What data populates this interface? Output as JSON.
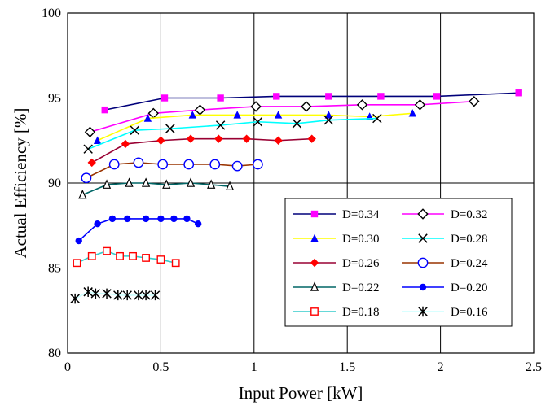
{
  "chart_data": {
    "type": "line",
    "title": "",
    "xlabel": "Input Power [kW]",
    "ylabel": "Actual Efficiency [%]",
    "xlim": [
      0,
      2.5
    ],
    "ylim": [
      80,
      100
    ],
    "xticks": [
      0,
      0.5,
      1,
      1.5,
      2,
      2.5
    ],
    "xtick_labels": [
      "0",
      "0.5",
      "1",
      "1.5",
      "2",
      "2.5"
    ],
    "yticks": [
      80,
      85,
      90,
      95,
      100
    ],
    "ytick_labels": [
      "80",
      "85",
      "90",
      "95",
      "100"
    ],
    "grid": true,
    "legend_position": "bottom-right, two columns",
    "series": [
      {
        "name": "D=0.34",
        "color": "#00007a",
        "marker": "square-filled",
        "marker_color": "#ff00ff",
        "x": [
          0.2,
          0.52,
          0.82,
          1.12,
          1.4,
          1.68,
          1.98,
          2.42
        ],
        "y": [
          94.3,
          95.0,
          95.0,
          95.1,
          95.1,
          95.1,
          95.1,
          95.3
        ]
      },
      {
        "name": "D=0.32",
        "color": "#ff00ff",
        "marker": "diamond-open",
        "marker_color": "#000000",
        "x": [
          0.12,
          0.46,
          0.71,
          1.01,
          1.28,
          1.58,
          1.89,
          2.18
        ],
        "y": [
          93.0,
          94.1,
          94.3,
          94.5,
          94.5,
          94.6,
          94.6,
          94.8
        ]
      },
      {
        "name": "D=0.30",
        "color": "#ffff00",
        "marker": "triangle-filled",
        "marker_color": "#0000ff",
        "x": [
          0.16,
          0.43,
          0.67,
          0.91,
          1.13,
          1.4,
          1.62,
          1.85
        ],
        "y": [
          92.5,
          93.8,
          94.0,
          94.0,
          94.0,
          94.0,
          93.9,
          94.1
        ]
      },
      {
        "name": "D=0.28",
        "color": "#00ffff",
        "marker": "x-cross",
        "marker_color": "#000000",
        "x": [
          0.11,
          0.36,
          0.55,
          0.82,
          1.02,
          1.23,
          1.4,
          1.66
        ],
        "y": [
          92.0,
          93.1,
          93.2,
          93.4,
          93.6,
          93.5,
          93.7,
          93.8
        ]
      },
      {
        "name": "D=0.26",
        "color": "#990033",
        "marker": "diamond-filled",
        "marker_color": "#ff0000",
        "x": [
          0.13,
          0.31,
          0.5,
          0.66,
          0.81,
          0.96,
          1.13,
          1.31
        ],
        "y": [
          91.2,
          92.3,
          92.5,
          92.6,
          92.6,
          92.6,
          92.5,
          92.6
        ]
      },
      {
        "name": "D=0.24",
        "color": "#993300",
        "marker": "circle-open",
        "marker_color": "#0000ff",
        "x": [
          0.1,
          0.25,
          0.38,
          0.51,
          0.65,
          0.79,
          0.91,
          1.02
        ],
        "y": [
          90.3,
          91.1,
          91.2,
          91.1,
          91.1,
          91.1,
          91.0,
          91.1
        ]
      },
      {
        "name": "D=0.22",
        "color": "#006666",
        "marker": "triangle-open",
        "marker_color": "#000000",
        "x": [
          0.08,
          0.21,
          0.33,
          0.42,
          0.53,
          0.66,
          0.77,
          0.87
        ],
        "y": [
          89.3,
          89.9,
          90.0,
          90.0,
          89.9,
          90.0,
          89.9,
          89.8
        ]
      },
      {
        "name": "D=0.20",
        "color": "#0000ff",
        "marker": "circle-filled",
        "marker_color": "#0000ff",
        "x": [
          0.06,
          0.16,
          0.24,
          0.32,
          0.42,
          0.5,
          0.57,
          0.64,
          0.7
        ],
        "y": [
          86.6,
          87.6,
          87.9,
          87.9,
          87.9,
          87.9,
          87.9,
          87.9,
          87.6
        ]
      },
      {
        "name": "D=0.18",
        "color": "#33cccc",
        "marker": "square-open",
        "marker_color": "#ff0000",
        "x": [
          0.05,
          0.13,
          0.21,
          0.28,
          0.35,
          0.42,
          0.5,
          0.58
        ],
        "y": [
          85.3,
          85.7,
          86.0,
          85.7,
          85.7,
          85.6,
          85.5,
          85.3
        ]
      },
      {
        "name": "D=0.16",
        "color": "#ccffff",
        "marker": "asterisk",
        "marker_color": "#000000",
        "x": [
          0.04,
          0.11,
          0.15,
          0.21,
          0.27,
          0.32,
          0.38,
          0.42,
          0.47
        ],
        "y": [
          83.2,
          83.6,
          83.5,
          83.5,
          83.4,
          83.4,
          83.4,
          83.4,
          83.4
        ]
      }
    ]
  }
}
